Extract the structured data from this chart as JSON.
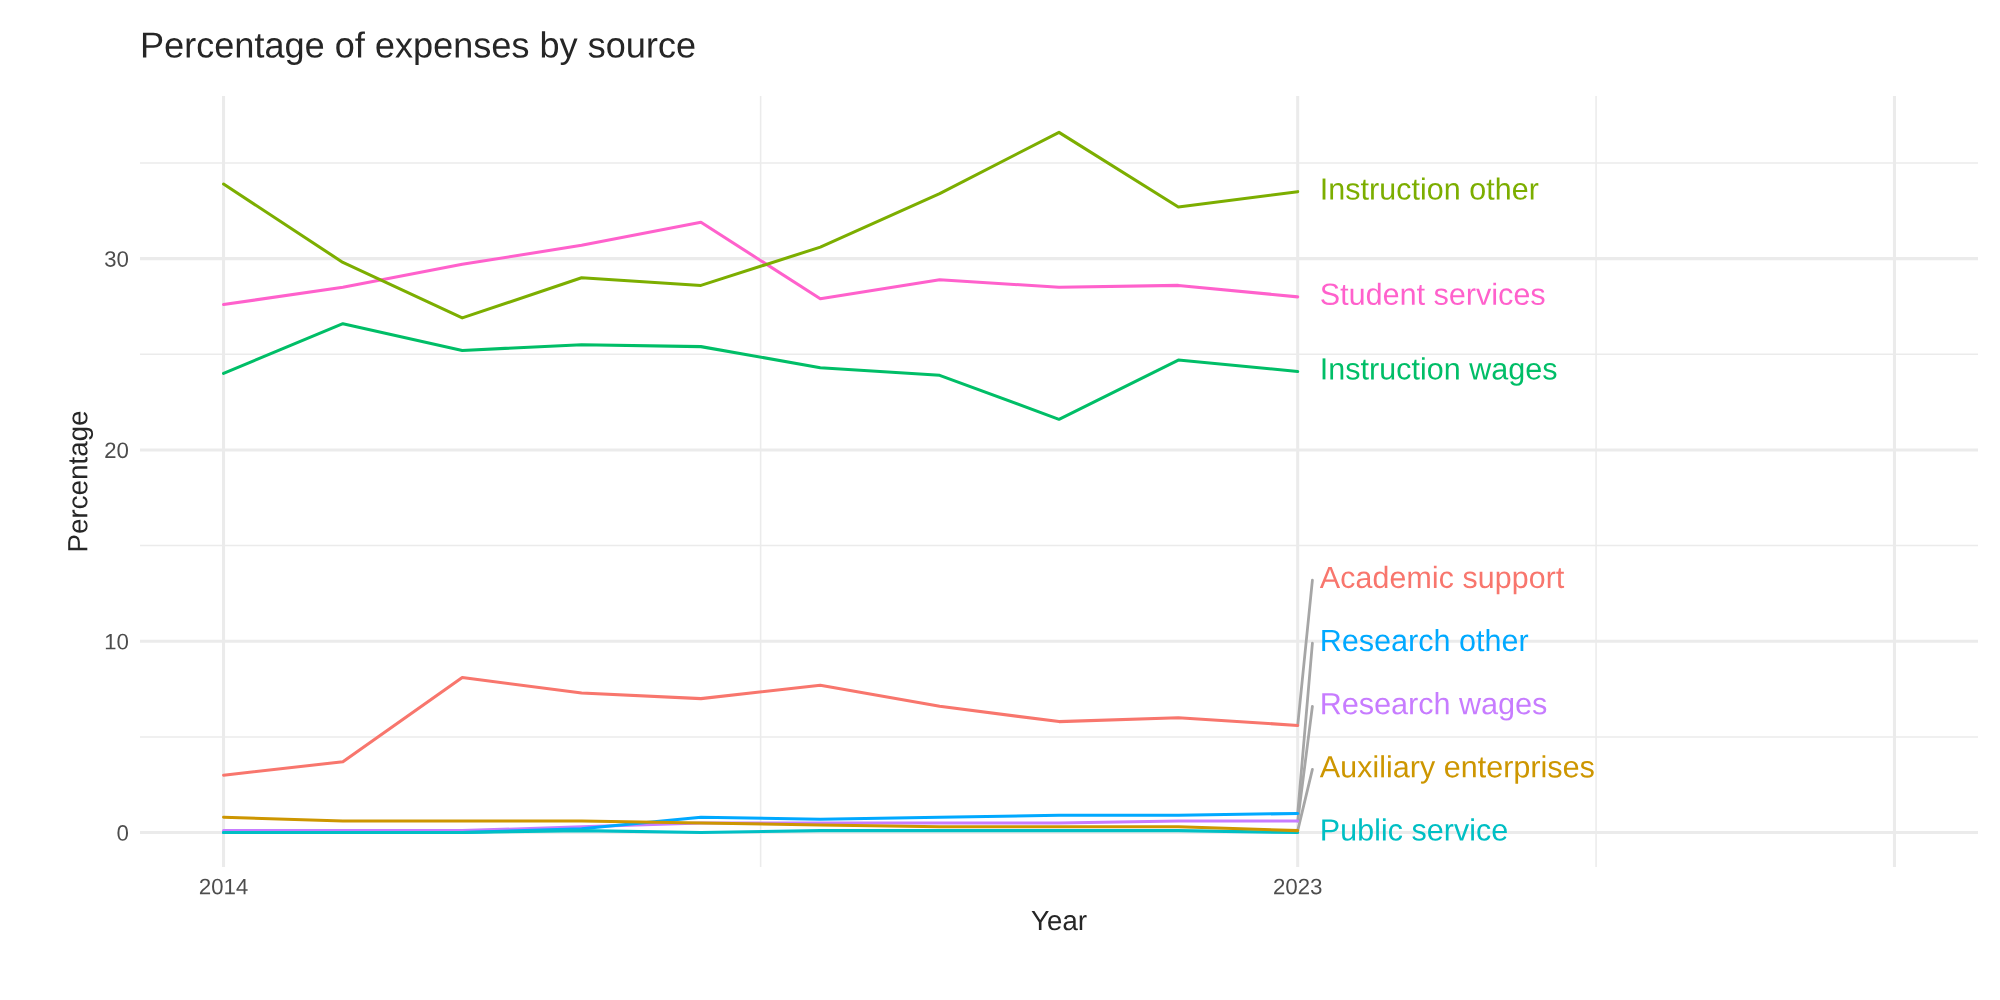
{
  "chart_data": {
    "type": "line",
    "title": "Percentage of expenses by source",
    "xlabel": "Year",
    "ylabel": "Percentage",
    "x": [
      2014,
      2015,
      2016,
      2017,
      2018,
      2019,
      2020,
      2021,
      2022,
      2023
    ],
    "series": [
      {
        "name": "Academic support",
        "color": "#f8766d",
        "values": [
          3.0,
          3.7,
          8.1,
          7.3,
          7.0,
          7.7,
          6.6,
          5.8,
          6.0,
          5.6
        ]
      },
      {
        "name": "Auxiliary enterprises",
        "color": "#cd9600",
        "values": [
          0.8,
          0.6,
          0.6,
          0.6,
          0.5,
          0.4,
          0.3,
          0.3,
          0.3,
          0.1
        ]
      },
      {
        "name": "Instruction other",
        "color": "#7cae00",
        "values": [
          33.9,
          29.8,
          26.9,
          29.0,
          28.6,
          30.6,
          33.4,
          36.6,
          32.7,
          33.5
        ]
      },
      {
        "name": "Instruction wages",
        "color": "#00be67",
        "values": [
          24.0,
          26.6,
          25.2,
          25.5,
          25.4,
          24.3,
          23.9,
          21.6,
          24.7,
          24.1
        ]
      },
      {
        "name": "Public service",
        "color": "#00bfc4",
        "values": [
          0.0,
          0.0,
          0.0,
          0.1,
          0.0,
          0.1,
          0.1,
          0.1,
          0.1,
          0.0
        ]
      },
      {
        "name": "Research other",
        "color": "#00a9ff",
        "values": [
          0.0,
          0.0,
          0.0,
          0.2,
          0.8,
          0.7,
          0.8,
          0.9,
          0.9,
          1.0
        ]
      },
      {
        "name": "Research wages",
        "color": "#c77cff",
        "values": [
          0.1,
          0.1,
          0.1,
          0.3,
          0.5,
          0.5,
          0.5,
          0.5,
          0.6,
          0.6
        ]
      },
      {
        "name": "Student services",
        "color": "#ff61cc",
        "values": [
          27.6,
          28.5,
          29.7,
          30.7,
          31.9,
          27.9,
          28.9,
          28.5,
          28.6,
          28.0
        ]
      }
    ],
    "xlim": [
      2013.3,
      2028.7
    ],
    "xticks": [
      2014,
      2023,
      {
        "value": 2028,
        "label": null
      }
    ],
    "ylim": [
      -1.8,
      38.5
    ],
    "yticks": [
      0,
      10,
      20,
      30
    ],
    "grid": true,
    "legend": false
  }
}
